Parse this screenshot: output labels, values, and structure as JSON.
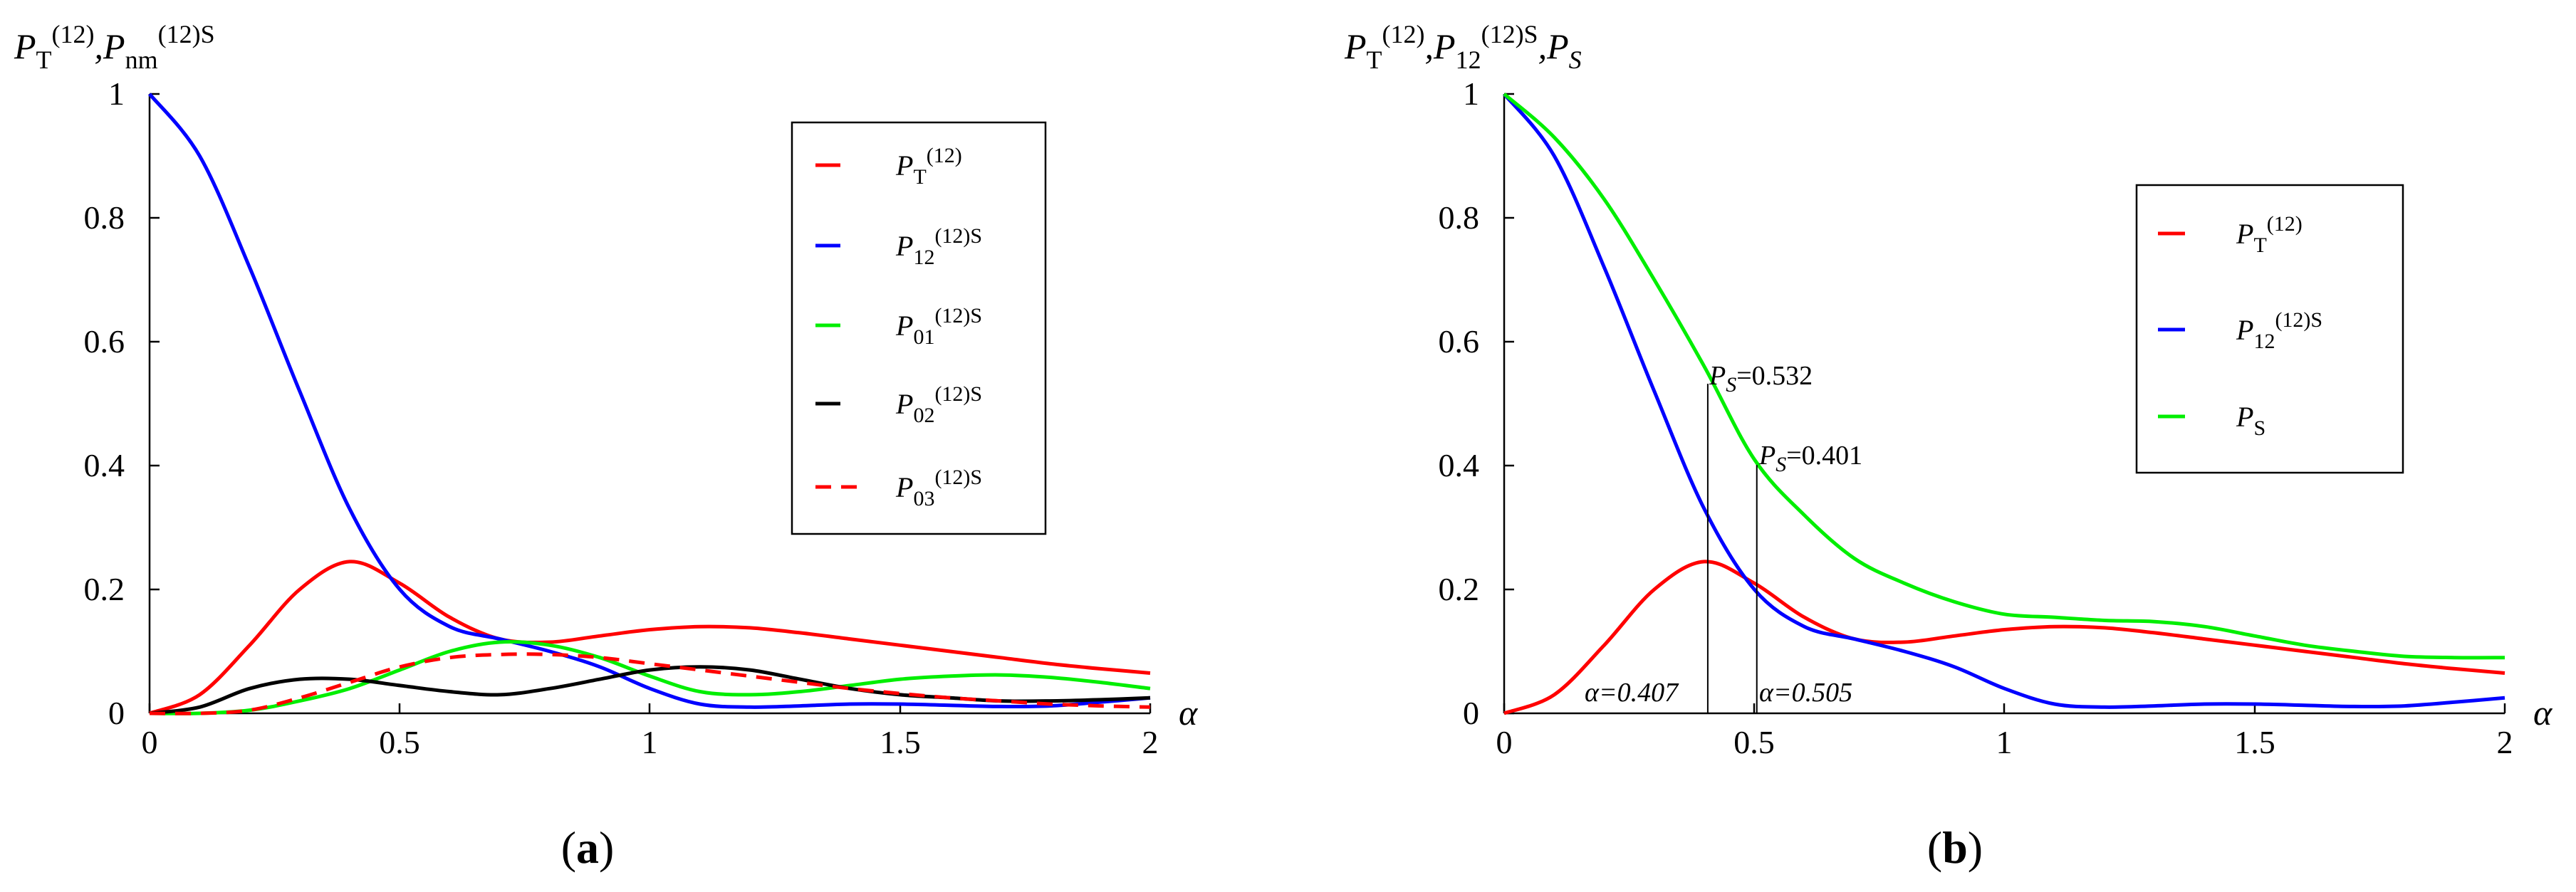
{
  "chart_data": [
    {
      "type": "line",
      "panel_label": "(a)",
      "ylabel": {
        "p": "P",
        "t": "T",
        "t_sup": "(12)",
        "sep": ",",
        "p2": "P",
        "nm": "nm",
        "nm_sup": "(12)S"
      },
      "xlabel": "α",
      "xlim": [
        0,
        2
      ],
      "ylim": [
        0,
        1
      ],
      "x_ticks": [
        "0",
        "0.5",
        "1",
        "1.5",
        "2"
      ],
      "y_ticks": [
        "0",
        "0.2",
        "0.4",
        "0.6",
        "0.8",
        "1"
      ],
      "x": [
        0,
        0.1,
        0.2,
        0.3,
        0.4,
        0.5,
        0.6,
        0.7,
        0.8,
        0.9,
        1.0,
        1.1,
        1.2,
        1.3,
        1.4,
        1.5,
        1.6,
        1.7,
        1.8,
        1.9,
        2.0
      ],
      "series": [
        {
          "name": "P_T(12)",
          "color": "#ff0000",
          "dash": "solid",
          "legend_label": "P",
          "legend_sub": "T",
          "legend_sup": "(12)",
          "values": [
            0,
            0.03,
            0.11,
            0.2,
            0.245,
            0.21,
            0.155,
            0.12,
            0.115,
            0.125,
            0.135,
            0.14,
            0.138,
            0.13,
            0.12,
            0.11,
            0.1,
            0.09,
            0.08,
            0.072,
            0.065
          ]
        },
        {
          "name": "P_12(12)S",
          "color": "#0000ff",
          "dash": "solid",
          "legend_label": "P",
          "legend_sub": "12",
          "legend_sup": "(12)S",
          "values": [
            1.0,
            0.9,
            0.72,
            0.52,
            0.33,
            0.2,
            0.14,
            0.12,
            0.1,
            0.075,
            0.04,
            0.015,
            0.01,
            0.012,
            0.015,
            0.015,
            0.013,
            0.011,
            0.012,
            0.018,
            0.025
          ]
        },
        {
          "name": "P_01(12)S",
          "color": "#00ee00",
          "dash": "solid",
          "legend_label": "P",
          "legend_sub": "01",
          "legend_sup": "(12)S",
          "values": [
            0,
            0.0,
            0.005,
            0.02,
            0.04,
            0.07,
            0.1,
            0.115,
            0.11,
            0.09,
            0.06,
            0.035,
            0.03,
            0.035,
            0.045,
            0.055,
            0.06,
            0.062,
            0.058,
            0.05,
            0.04
          ]
        },
        {
          "name": "P_02(12)S",
          "color": "#000000",
          "dash": "solid",
          "legend_label": "P",
          "legend_sub": "02",
          "legend_sup": "(12)S",
          "values": [
            0,
            0.01,
            0.04,
            0.055,
            0.055,
            0.045,
            0.035,
            0.03,
            0.04,
            0.055,
            0.07,
            0.075,
            0.07,
            0.055,
            0.04,
            0.03,
            0.025,
            0.02,
            0.02,
            0.022,
            0.025
          ]
        },
        {
          "name": "P_03(12)S",
          "color": "#ff0000",
          "dash": "dashed",
          "legend_label": "P",
          "legend_sub": "03",
          "legend_sup": "(12)S",
          "values": [
            0,
            0.0,
            0.005,
            0.025,
            0.05,
            0.075,
            0.09,
            0.095,
            0.095,
            0.09,
            0.08,
            0.07,
            0.06,
            0.05,
            0.04,
            0.032,
            0.025,
            0.02,
            0.015,
            0.012,
            0.01
          ]
        }
      ]
    },
    {
      "type": "line",
      "panel_label": "(b)",
      "ylabel": {
        "p": "P",
        "t": "T",
        "t_sup": "(12)",
        "sep": ",",
        "p2": "P",
        "n12": "12",
        "n12_sup": "(12)S",
        "sep2": ",",
        "p3": "P",
        "s": "S"
      },
      "xlabel": "α",
      "xlim": [
        0,
        2
      ],
      "ylim": [
        0,
        1
      ],
      "x_ticks": [
        "0",
        "0.5",
        "1",
        "1.5",
        "2"
      ],
      "y_ticks": [
        "0",
        "0.2",
        "0.4",
        "0.6",
        "0.8",
        "1"
      ],
      "x": [
        0,
        0.1,
        0.2,
        0.3,
        0.4,
        0.5,
        0.6,
        0.7,
        0.8,
        0.9,
        1.0,
        1.1,
        1.2,
        1.3,
        1.4,
        1.5,
        1.6,
        1.7,
        1.8,
        1.9,
        2.0
      ],
      "series": [
        {
          "name": "P_T(12)",
          "color": "#ff0000",
          "dash": "solid",
          "legend_label": "P",
          "legend_sub": "T",
          "legend_sup": "(12)",
          "values": [
            0,
            0.03,
            0.11,
            0.2,
            0.245,
            0.21,
            0.155,
            0.12,
            0.115,
            0.125,
            0.135,
            0.14,
            0.138,
            0.13,
            0.12,
            0.11,
            0.1,
            0.09,
            0.08,
            0.072,
            0.065
          ]
        },
        {
          "name": "P_12(12)S",
          "color": "#0000ff",
          "dash": "solid",
          "legend_label": "P",
          "legend_sub": "12",
          "legend_sup": "(12)S",
          "values": [
            1.0,
            0.9,
            0.72,
            0.52,
            0.33,
            0.2,
            0.14,
            0.12,
            0.1,
            0.075,
            0.04,
            0.015,
            0.01,
            0.012,
            0.015,
            0.015,
            0.013,
            0.011,
            0.012,
            0.018,
            0.025
          ]
        },
        {
          "name": "P_S",
          "color": "#00ee00",
          "dash": "solid",
          "legend_label": "P",
          "legend_sub": "S",
          "legend_sup": "",
          "values": [
            1.0,
            0.93,
            0.83,
            0.7,
            0.56,
            0.41,
            0.32,
            0.25,
            0.21,
            0.18,
            0.16,
            0.155,
            0.15,
            0.148,
            0.14,
            0.125,
            0.11,
            0.1,
            0.092,
            0.09,
            0.09
          ]
        }
      ],
      "annotations": [
        {
          "id": "ann1",
          "x": 0.407,
          "label_alpha": "α=0.407",
          "p": "P",
          "s": "S",
          "ps_text": "=0.532",
          "ps_value": 0.532
        },
        {
          "id": "ann2",
          "x": 0.505,
          "label_alpha": "α=0.505",
          "p": "P",
          "s": "S",
          "ps_text": "=0.401",
          "ps_value": 0.401
        }
      ]
    }
  ]
}
